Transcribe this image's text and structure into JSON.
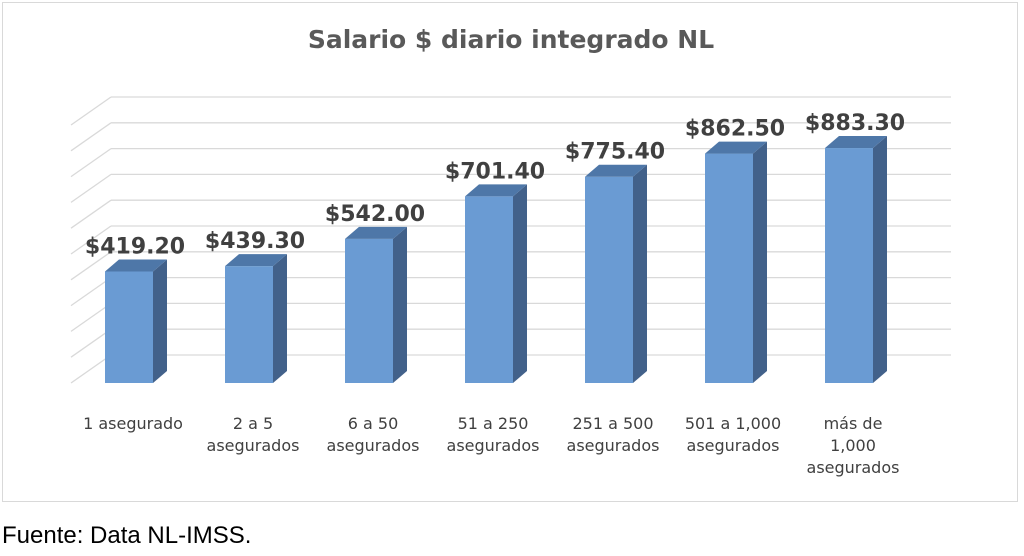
{
  "chart_data": {
    "type": "bar",
    "title": "Salario $ diario integrado NL",
    "categories": [
      [
        "1 asegurado"
      ],
      [
        "2 a 5",
        "asegurados"
      ],
      [
        "6 a 50",
        "asegurados"
      ],
      [
        "51 a 250",
        "asegurados"
      ],
      [
        "251 a 500",
        "asegurados"
      ],
      [
        "501 a 1,000",
        "asegurados"
      ],
      [
        "más de",
        "1,000",
        "asegurados"
      ]
    ],
    "values": [
      419.2,
      439.3,
      542.0,
      701.4,
      775.4,
      862.5,
      883.3
    ],
    "data_labels": [
      "$419.20",
      "$439.30",
      "$542.00",
      "$701.40",
      "$775.40",
      "$862.50",
      "$883.30"
    ],
    "xlabel": "",
    "ylabel": "",
    "ylim": [
      0,
      1000
    ],
    "grid": true,
    "legend": "none",
    "three_d": true,
    "colors": {
      "bar_front": "#6a9bd3",
      "bar_side": "#42618a",
      "bar_top": "#4e77a8",
      "grid": "#d9d9d9",
      "label": "#404040",
      "tick": "#404040"
    }
  },
  "source": "Fuente: Data NL-IMSS."
}
